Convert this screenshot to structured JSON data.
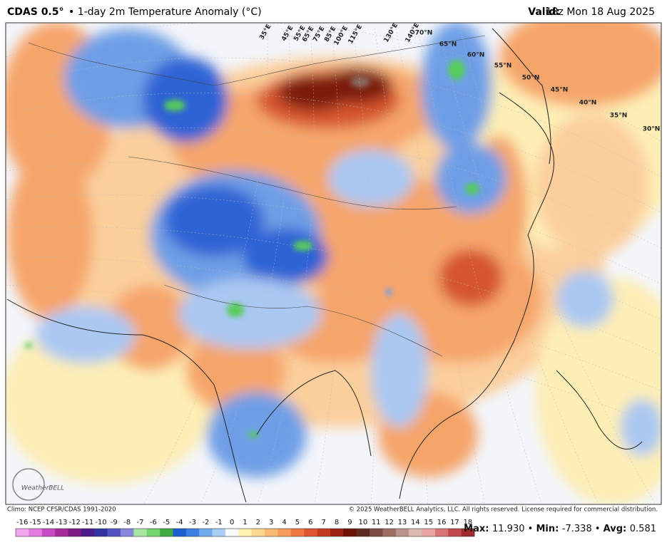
{
  "header": {
    "model": "CDAS 0.5°",
    "title": "• 1-day 2m Temperature Anomaly (°C)",
    "valid_label": "Valid:",
    "valid_time": "18z Mon 18 Aug 2025"
  },
  "map": {
    "lon_labels": [
      "35°E",
      "45°E",
      "55°E",
      "65°E",
      "75°E",
      "85°E",
      "100°E",
      "115°E",
      "130°E",
      "140°E"
    ],
    "lat_labels": [
      "70°N",
      "65°N",
      "60°N",
      "55°N",
      "50°N",
      "45°N",
      "40°N",
      "35°N",
      "30°N"
    ],
    "logo": "WeatherBELL"
  },
  "footer": {
    "climo": "Climo: NCEP CFSR/CDAS 1991-2020",
    "copyright": "© 2025 WeatherBELL Analytics, LLC. All rights reserved. License required for commercial distribution."
  },
  "colorbar": {
    "ticks": [
      -16,
      -15,
      -14,
      -13,
      -12,
      -11,
      -10,
      -9,
      -8,
      -7,
      -6,
      -5,
      -4,
      -3,
      -2,
      -1,
      0,
      1,
      2,
      3,
      4,
      5,
      6,
      7,
      8,
      9,
      10,
      11,
      12,
      13,
      14,
      15,
      16,
      17,
      18
    ]
  },
  "stats": {
    "max_label": "Max:",
    "max": "11.930",
    "min_label": "Min:",
    "min": "-7.338",
    "avg_label": "Avg:",
    "avg": "0.581"
  }
}
